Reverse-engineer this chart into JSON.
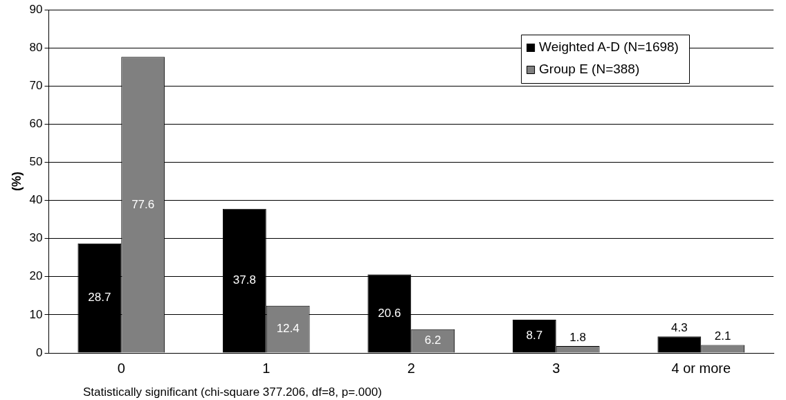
{
  "chart_data": {
    "type": "bar",
    "ylabel": "(%)",
    "categories": [
      "0",
      "1",
      "2",
      "3",
      "4 or more"
    ],
    "series": [
      {
        "name": "Weighted A-D (N=1698)",
        "color": "#000000",
        "values": [
          28.7,
          37.8,
          20.6,
          8.7,
          4.3
        ]
      },
      {
        "name": "Group E (N=388)",
        "color": "#808080",
        "values": [
          77.6,
          12.4,
          6.2,
          1.8,
          2.1
        ]
      }
    ],
    "ylim": [
      0,
      90
    ],
    "yticks": [
      0,
      10,
      20,
      30,
      40,
      50,
      60,
      70,
      80,
      90
    ],
    "grid": "y",
    "legend": "top right",
    "data_labels": true,
    "annotations": [
      "Statistically significant (chi-square 377.206, df=8, p=.000)"
    ]
  }
}
